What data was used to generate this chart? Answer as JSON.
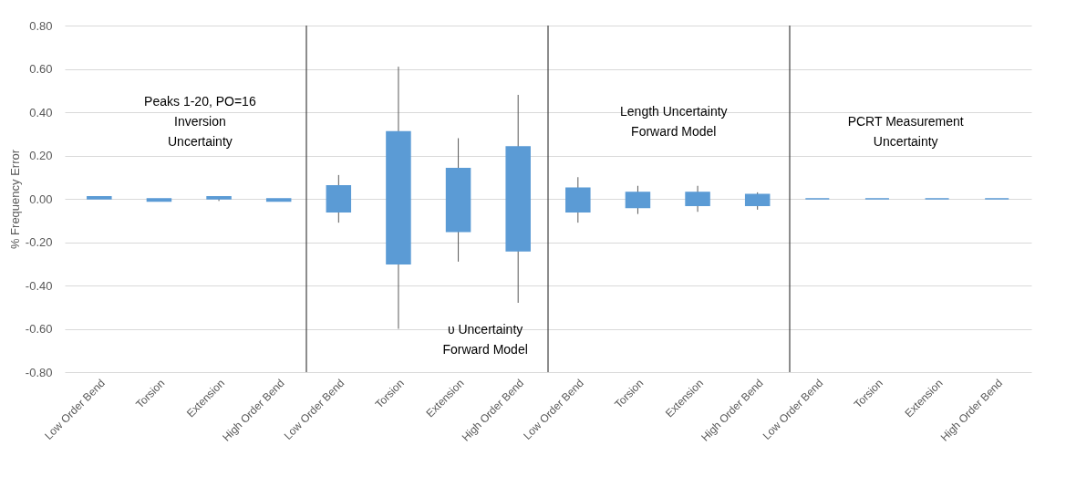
{
  "chart_data": {
    "type": "candlestick",
    "ylabel": "% Frequency Error",
    "categories": [
      "Low Order Bend",
      "Torsion",
      "Extension",
      "High Order Bend",
      "Low Order Bend",
      "Torsion",
      "Extension",
      "High Order Bend",
      "Low Order Bend",
      "Torsion",
      "Extension",
      "High Order Bend",
      "Low Order Bend",
      "Torsion",
      "Extension",
      "High Order Bend"
    ],
    "ohlc": [
      [
        0,
        0.01,
        0,
        0.01
      ],
      [
        -0.01,
        0,
        -0.01,
        0
      ],
      [
        0,
        0.01,
        -0.01,
        0.01
      ],
      [
        -0.01,
        0,
        -0.01,
        0
      ],
      [
        -0.06,
        0.11,
        -0.11,
        0.06
      ],
      [
        -0.3,
        0.61,
        -0.6,
        0.31
      ],
      [
        -0.15,
        0.28,
        -0.29,
        0.14
      ],
      [
        -0.24,
        0.48,
        -0.48,
        0.24
      ],
      [
        -0.06,
        0.1,
        -0.11,
        0.05
      ],
      [
        -0.04,
        0.06,
        -0.07,
        0.03
      ],
      [
        -0.03,
        0.06,
        -0.06,
        0.03
      ],
      [
        -0.03,
        0.03,
        -0.05,
        0.02
      ],
      [
        0,
        0,
        0,
        0
      ],
      [
        0,
        0,
        0,
        0
      ],
      [
        0,
        0,
        0,
        0
      ],
      [
        0,
        0,
        0,
        0
      ]
    ],
    "color": "#5b9bd5",
    "ylim": [
      -0.8,
      0.8
    ],
    "yticks": [
      {
        "value": -0.8,
        "label": "-0.80"
      },
      {
        "value": -0.6,
        "label": "-0.60"
      },
      {
        "value": -0.4,
        "label": "-0.40"
      },
      {
        "value": -0.2,
        "label": "-0.20"
      },
      {
        "value": 0,
        "label": "0.00"
      },
      {
        "value": 0.2,
        "label": "0.20"
      },
      {
        "value": 0.4,
        "label": "0.40"
      },
      {
        "value": 0.6,
        "label": "0.60"
      },
      {
        "value": 0.8,
        "label": "0.80"
      }
    ],
    "grid": "y",
    "annotations": [
      "Peaks 1-20, PO=16\nInversion\nUncertainty",
      "υ Uncertainty\nForward Model",
      "Length Uncertainty\nForward Model",
      "PCRT Measurement\nUncertainty"
    ]
  }
}
